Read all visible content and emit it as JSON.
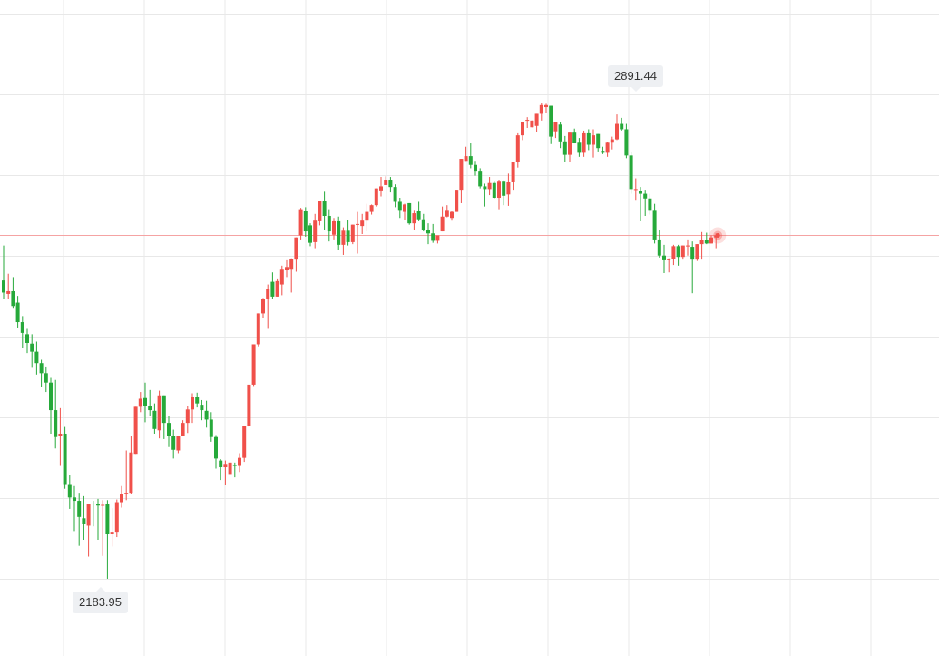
{
  "chart_data": {
    "type": "candlestick",
    "colors": {
      "up": "#f0504a",
      "down": "#26a93a",
      "current_line": "#f5a3a3",
      "grid": "#e8e8e8"
    },
    "grid": true,
    "ylim": [
      2150,
      2950
    ],
    "annotations": {
      "high": "2891.44",
      "low": "2183.95"
    },
    "current_price": 2695,
    "candles": [
      {
        "o": 2628,
        "h": 2680,
        "l": 2600,
        "c": 2610
      },
      {
        "o": 2608,
        "h": 2638,
        "l": 2600,
        "c": 2612
      },
      {
        "o": 2612,
        "h": 2633,
        "l": 2586,
        "c": 2590
      },
      {
        "o": 2595,
        "h": 2605,
        "l": 2558,
        "c": 2566
      },
      {
        "o": 2566,
        "h": 2575,
        "l": 2528,
        "c": 2550
      },
      {
        "o": 2548,
        "h": 2556,
        "l": 2520,
        "c": 2535
      },
      {
        "o": 2534,
        "h": 2548,
        "l": 2498,
        "c": 2522
      },
      {
        "o": 2522,
        "h": 2537,
        "l": 2488,
        "c": 2505
      },
      {
        "o": 2505,
        "h": 2510,
        "l": 2470,
        "c": 2490
      },
      {
        "o": 2490,
        "h": 2500,
        "l": 2462,
        "c": 2476
      },
      {
        "o": 2476,
        "h": 2483,
        "l": 2400,
        "c": 2435
      },
      {
        "o": 2435,
        "h": 2480,
        "l": 2378,
        "c": 2395
      },
      {
        "o": 2397,
        "h": 2438,
        "l": 2352,
        "c": 2400
      },
      {
        "o": 2400,
        "h": 2410,
        "l": 2318,
        "c": 2325
      },
      {
        "o": 2325,
        "h": 2338,
        "l": 2288,
        "c": 2305
      },
      {
        "o": 2305,
        "h": 2322,
        "l": 2255,
        "c": 2300
      },
      {
        "o": 2300,
        "h": 2312,
        "l": 2233,
        "c": 2276
      },
      {
        "o": 2274,
        "h": 2307,
        "l": 2242,
        "c": 2265
      },
      {
        "o": 2263,
        "h": 2296,
        "l": 2217,
        "c": 2296
      },
      {
        "o": 2296,
        "h": 2300,
        "l": 2262,
        "c": 2295
      },
      {
        "o": 2295,
        "h": 2303,
        "l": 2242,
        "c": 2293
      },
      {
        "o": 2293,
        "h": 2301,
        "l": 2218,
        "c": 2294
      },
      {
        "o": 2296,
        "h": 2301,
        "l": 2184,
        "c": 2251
      },
      {
        "o": 2251,
        "h": 2289,
        "l": 2232,
        "c": 2254
      },
      {
        "o": 2254,
        "h": 2302,
        "l": 2246,
        "c": 2298
      },
      {
        "o": 2298,
        "h": 2322,
        "l": 2290,
        "c": 2310
      },
      {
        "o": 2310,
        "h": 2375,
        "l": 2301,
        "c": 2312
      },
      {
        "o": 2312,
        "h": 2396,
        "l": 2310,
        "c": 2372
      },
      {
        "o": 2370,
        "h": 2439,
        "l": 2370,
        "c": 2440
      },
      {
        "o": 2440,
        "h": 2462,
        "l": 2432,
        "c": 2452
      },
      {
        "o": 2453,
        "h": 2476,
        "l": 2417,
        "c": 2441
      },
      {
        "o": 2441,
        "h": 2465,
        "l": 2427,
        "c": 2435
      },
      {
        "o": 2434,
        "h": 2445,
        "l": 2400,
        "c": 2407
      },
      {
        "o": 2405,
        "h": 2464,
        "l": 2393,
        "c": 2457
      },
      {
        "o": 2457,
        "h": 2457,
        "l": 2392,
        "c": 2416
      },
      {
        "o": 2416,
        "h": 2427,
        "l": 2380,
        "c": 2396
      },
      {
        "o": 2396,
        "h": 2406,
        "l": 2363,
        "c": 2376
      },
      {
        "o": 2375,
        "h": 2393,
        "l": 2371,
        "c": 2396
      },
      {
        "o": 2397,
        "h": 2420,
        "l": 2397,
        "c": 2416
      },
      {
        "o": 2416,
        "h": 2441,
        "l": 2401,
        "c": 2436
      },
      {
        "o": 2436,
        "h": 2460,
        "l": 2416,
        "c": 2454
      },
      {
        "o": 2455,
        "h": 2461,
        "l": 2439,
        "c": 2445
      },
      {
        "o": 2443,
        "h": 2450,
        "l": 2420,
        "c": 2435
      },
      {
        "o": 2434,
        "h": 2449,
        "l": 2409,
        "c": 2421
      },
      {
        "o": 2421,
        "h": 2432,
        "l": 2388,
        "c": 2395
      },
      {
        "o": 2395,
        "h": 2398,
        "l": 2348,
        "c": 2363
      },
      {
        "o": 2360,
        "h": 2362,
        "l": 2331,
        "c": 2350
      },
      {
        "o": 2350,
        "h": 2360,
        "l": 2323,
        "c": 2355
      },
      {
        "o": 2340,
        "h": 2356,
        "l": 2340,
        "c": 2357
      },
      {
        "o": 2354,
        "h": 2357,
        "l": 2335,
        "c": 2352
      },
      {
        "o": 2352,
        "h": 2371,
        "l": 2343,
        "c": 2364
      },
      {
        "o": 2364,
        "h": 2412,
        "l": 2358,
        "c": 2412
      },
      {
        "o": 2412,
        "h": 2473,
        "l": 2410,
        "c": 2473
      },
      {
        "o": 2473,
        "h": 2530,
        "l": 2471,
        "c": 2533
      },
      {
        "o": 2533,
        "h": 2579,
        "l": 2530,
        "c": 2579
      },
      {
        "o": 2579,
        "h": 2602,
        "l": 2572,
        "c": 2601
      },
      {
        "o": 2601,
        "h": 2622,
        "l": 2556,
        "c": 2616
      },
      {
        "o": 2626,
        "h": 2640,
        "l": 2601,
        "c": 2604
      },
      {
        "o": 2604,
        "h": 2631,
        "l": 2604,
        "c": 2627
      },
      {
        "o": 2622,
        "h": 2650,
        "l": 2606,
        "c": 2644
      },
      {
        "o": 2643,
        "h": 2658,
        "l": 2633,
        "c": 2648
      },
      {
        "o": 2644,
        "h": 2661,
        "l": 2610,
        "c": 2660
      },
      {
        "o": 2659,
        "h": 2690,
        "l": 2641,
        "c": 2692
      },
      {
        "o": 2695,
        "h": 2736,
        "l": 2689,
        "c": 2734
      },
      {
        "o": 2732,
        "h": 2737,
        "l": 2693,
        "c": 2701
      },
      {
        "o": 2710,
        "h": 2713,
        "l": 2679,
        "c": 2684
      },
      {
        "o": 2685,
        "h": 2727,
        "l": 2676,
        "c": 2717
      },
      {
        "o": 2716,
        "h": 2746,
        "l": 2710,
        "c": 2746
      },
      {
        "o": 2746,
        "h": 2760,
        "l": 2703,
        "c": 2724
      },
      {
        "o": 2724,
        "h": 2734,
        "l": 2686,
        "c": 2701
      },
      {
        "o": 2696,
        "h": 2721,
        "l": 2689,
        "c": 2716
      },
      {
        "o": 2716,
        "h": 2723,
        "l": 2674,
        "c": 2681
      },
      {
        "o": 2681,
        "h": 2707,
        "l": 2666,
        "c": 2702
      },
      {
        "o": 2702,
        "h": 2718,
        "l": 2680,
        "c": 2685
      },
      {
        "o": 2685,
        "h": 2711,
        "l": 2682,
        "c": 2711
      },
      {
        "o": 2711,
        "h": 2730,
        "l": 2668,
        "c": 2712
      },
      {
        "o": 2709,
        "h": 2727,
        "l": 2697,
        "c": 2717
      },
      {
        "o": 2717,
        "h": 2742,
        "l": 2701,
        "c": 2730
      },
      {
        "o": 2730,
        "h": 2741,
        "l": 2726,
        "c": 2740
      },
      {
        "o": 2740,
        "h": 2765,
        "l": 2738,
        "c": 2765
      },
      {
        "o": 2762,
        "h": 2782,
        "l": 2753,
        "c": 2768
      },
      {
        "o": 2770,
        "h": 2783,
        "l": 2773,
        "c": 2778
      },
      {
        "o": 2778,
        "h": 2782,
        "l": 2759,
        "c": 2767
      },
      {
        "o": 2767,
        "h": 2771,
        "l": 2737,
        "c": 2745
      },
      {
        "o": 2745,
        "h": 2751,
        "l": 2721,
        "c": 2733
      },
      {
        "o": 2730,
        "h": 2742,
        "l": 2718,
        "c": 2741
      },
      {
        "o": 2743,
        "h": 2742,
        "l": 2711,
        "c": 2713
      },
      {
        "o": 2713,
        "h": 2733,
        "l": 2703,
        "c": 2728
      },
      {
        "o": 2732,
        "h": 2745,
        "l": 2716,
        "c": 2719
      },
      {
        "o": 2719,
        "h": 2727,
        "l": 2701,
        "c": 2703
      },
      {
        "o": 2703,
        "h": 2713,
        "l": 2682,
        "c": 2698
      },
      {
        "o": 2698,
        "h": 2712,
        "l": 2684,
        "c": 2687
      },
      {
        "o": 2687,
        "h": 2695,
        "l": 2683,
        "c": 2695
      },
      {
        "o": 2701,
        "h": 2738,
        "l": 2701,
        "c": 2723
      },
      {
        "o": 2723,
        "h": 2740,
        "l": 2722,
        "c": 2733
      },
      {
        "o": 2721,
        "h": 2731,
        "l": 2717,
        "c": 2730
      },
      {
        "o": 2730,
        "h": 2762,
        "l": 2730,
        "c": 2763
      },
      {
        "o": 2763,
        "h": 2808,
        "l": 2743,
        "c": 2809
      },
      {
        "o": 2806,
        "h": 2827,
        "l": 2806,
        "c": 2813
      },
      {
        "o": 2813,
        "h": 2832,
        "l": 2795,
        "c": 2800
      },
      {
        "o": 2800,
        "h": 2806,
        "l": 2784,
        "c": 2790
      },
      {
        "o": 2790,
        "h": 2795,
        "l": 2765,
        "c": 2768
      },
      {
        "o": 2768,
        "h": 2772,
        "l": 2738,
        "c": 2764
      },
      {
        "o": 2764,
        "h": 2782,
        "l": 2755,
        "c": 2773
      },
      {
        "o": 2773,
        "h": 2775,
        "l": 2750,
        "c": 2751
      },
      {
        "o": 2751,
        "h": 2778,
        "l": 2734,
        "c": 2775
      },
      {
        "o": 2775,
        "h": 2777,
        "l": 2740,
        "c": 2754
      },
      {
        "o": 2756,
        "h": 2787,
        "l": 2739,
        "c": 2774
      },
      {
        "o": 2774,
        "h": 2796,
        "l": 2763,
        "c": 2804
      },
      {
        "o": 2805,
        "h": 2847,
        "l": 2796,
        "c": 2844
      },
      {
        "o": 2844,
        "h": 2864,
        "l": 2837,
        "c": 2864
      },
      {
        "o": 2866,
        "h": 2871,
        "l": 2855,
        "c": 2867
      },
      {
        "o": 2856,
        "h": 2862,
        "l": 2856,
        "c": 2866
      },
      {
        "o": 2858,
        "h": 2876,
        "l": 2849,
        "c": 2876
      },
      {
        "o": 2876,
        "h": 2892,
        "l": 2866,
        "c": 2889
      },
      {
        "o": 2886,
        "h": 2891,
        "l": 2878,
        "c": 2889
      },
      {
        "o": 2888,
        "h": 2888,
        "l": 2831,
        "c": 2842
      },
      {
        "o": 2850,
        "h": 2864,
        "l": 2840,
        "c": 2864
      },
      {
        "o": 2860,
        "h": 2864,
        "l": 2825,
        "c": 2835
      },
      {
        "o": 2835,
        "h": 2843,
        "l": 2805,
        "c": 2815
      },
      {
        "o": 2815,
        "h": 2848,
        "l": 2805,
        "c": 2848
      },
      {
        "o": 2848,
        "h": 2854,
        "l": 2835,
        "c": 2832
      },
      {
        "o": 2833,
        "h": 2840,
        "l": 2812,
        "c": 2818
      },
      {
        "o": 2818,
        "h": 2851,
        "l": 2812,
        "c": 2847
      },
      {
        "o": 2847,
        "h": 2853,
        "l": 2822,
        "c": 2830
      },
      {
        "o": 2830,
        "h": 2853,
        "l": 2811,
        "c": 2844
      },
      {
        "o": 2846,
        "h": 2843,
        "l": 2820,
        "c": 2825
      },
      {
        "o": 2821,
        "h": 2827,
        "l": 2816,
        "c": 2818
      },
      {
        "o": 2818,
        "h": 2834,
        "l": 2812,
        "c": 2833
      },
      {
        "o": 2833,
        "h": 2842,
        "l": 2823,
        "c": 2838
      },
      {
        "o": 2838,
        "h": 2875,
        "l": 2837,
        "c": 2861
      },
      {
        "o": 2861,
        "h": 2870,
        "l": 2851,
        "c": 2853
      },
      {
        "o": 2853,
        "h": 2861,
        "l": 2810,
        "c": 2814
      },
      {
        "o": 2814,
        "h": 2820,
        "l": 2757,
        "c": 2764
      },
      {
        "o": 2764,
        "h": 2780,
        "l": 2748,
        "c": 2764
      },
      {
        "o": 2761,
        "h": 2767,
        "l": 2716,
        "c": 2757
      },
      {
        "o": 2757,
        "h": 2763,
        "l": 2724,
        "c": 2750
      },
      {
        "o": 2750,
        "h": 2757,
        "l": 2726,
        "c": 2733
      },
      {
        "o": 2733,
        "h": 2742,
        "l": 2683,
        "c": 2689
      },
      {
        "o": 2689,
        "h": 2703,
        "l": 2662,
        "c": 2665
      },
      {
        "o": 2665,
        "h": 2681,
        "l": 2639,
        "c": 2658
      },
      {
        "o": 2658,
        "h": 2661,
        "l": 2640,
        "c": 2660
      },
      {
        "o": 2660,
        "h": 2681,
        "l": 2651,
        "c": 2679
      },
      {
        "o": 2679,
        "h": 2681,
        "l": 2650,
        "c": 2663
      },
      {
        "o": 2663,
        "h": 2680,
        "l": 2659,
        "c": 2680
      },
      {
        "o": 2680,
        "h": 2689,
        "l": 2665,
        "c": 2680
      },
      {
        "o": 2678,
        "h": 2686,
        "l": 2609,
        "c": 2659
      },
      {
        "o": 2659,
        "h": 2682,
        "l": 2657,
        "c": 2682
      },
      {
        "o": 2682,
        "h": 2700,
        "l": 2659,
        "c": 2688
      },
      {
        "o": 2688,
        "h": 2699,
        "l": 2682,
        "c": 2683
      },
      {
        "o": 2683,
        "h": 2695,
        "l": 2684,
        "c": 2692
      },
      {
        "o": 2692,
        "h": 2698,
        "l": 2676,
        "c": 2695
      }
    ]
  }
}
